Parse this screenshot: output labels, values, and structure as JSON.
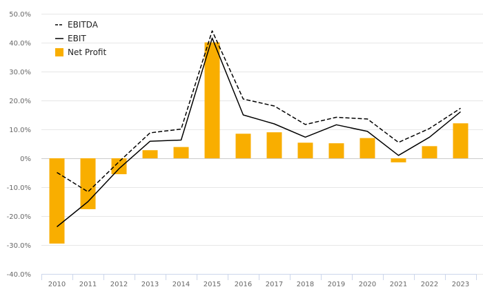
{
  "chart_data": {
    "type": "bar",
    "title": "",
    "xlabel": "",
    "ylabel": "",
    "categories": [
      "2010",
      "2011",
      "2012",
      "2013",
      "2014",
      "2015",
      "2016",
      "2017",
      "2018",
      "2019",
      "2020",
      "2021",
      "2022",
      "2023"
    ],
    "ylim": [
      -40,
      50
    ],
    "y_ticks": [
      -40,
      -30,
      -20,
      -10,
      0,
      10,
      20,
      30,
      40,
      50
    ],
    "y_tick_labels": [
      "-40.0%",
      "-30.0%",
      "-20.0%",
      "-10.0%",
      "0%",
      "10.0%",
      "20.0%",
      "30.0%",
      "40.0%",
      "50.0%"
    ],
    "grid": true,
    "legend_position": "top-left",
    "series": [
      {
        "name": "EBITDA",
        "type": "line",
        "style": "dashed",
        "color": "#000000",
        "values": [
          -4.9,
          -11.6,
          -1.2,
          8.8,
          10.1,
          44.1,
          20.5,
          18.1,
          11.7,
          14.2,
          13.6,
          5.5,
          10.3,
          17.3
        ]
      },
      {
        "name": "EBIT",
        "type": "line",
        "style": "solid",
        "color": "#000000",
        "values": [
          -23.7,
          -15.0,
          -3.6,
          5.9,
          6.3,
          41.6,
          15.0,
          11.9,
          7.3,
          11.6,
          9.3,
          1.0,
          7.3,
          16.1
        ]
      },
      {
        "name": "Net Profit",
        "type": "bar",
        "color": "#F9AE00",
        "values": [
          -29.5,
          -17.6,
          -5.5,
          2.8,
          3.9,
          40.1,
          8.5,
          9.0,
          5.4,
          5.2,
          7.0,
          -1.4,
          4.2,
          12.1
        ]
      }
    ]
  }
}
